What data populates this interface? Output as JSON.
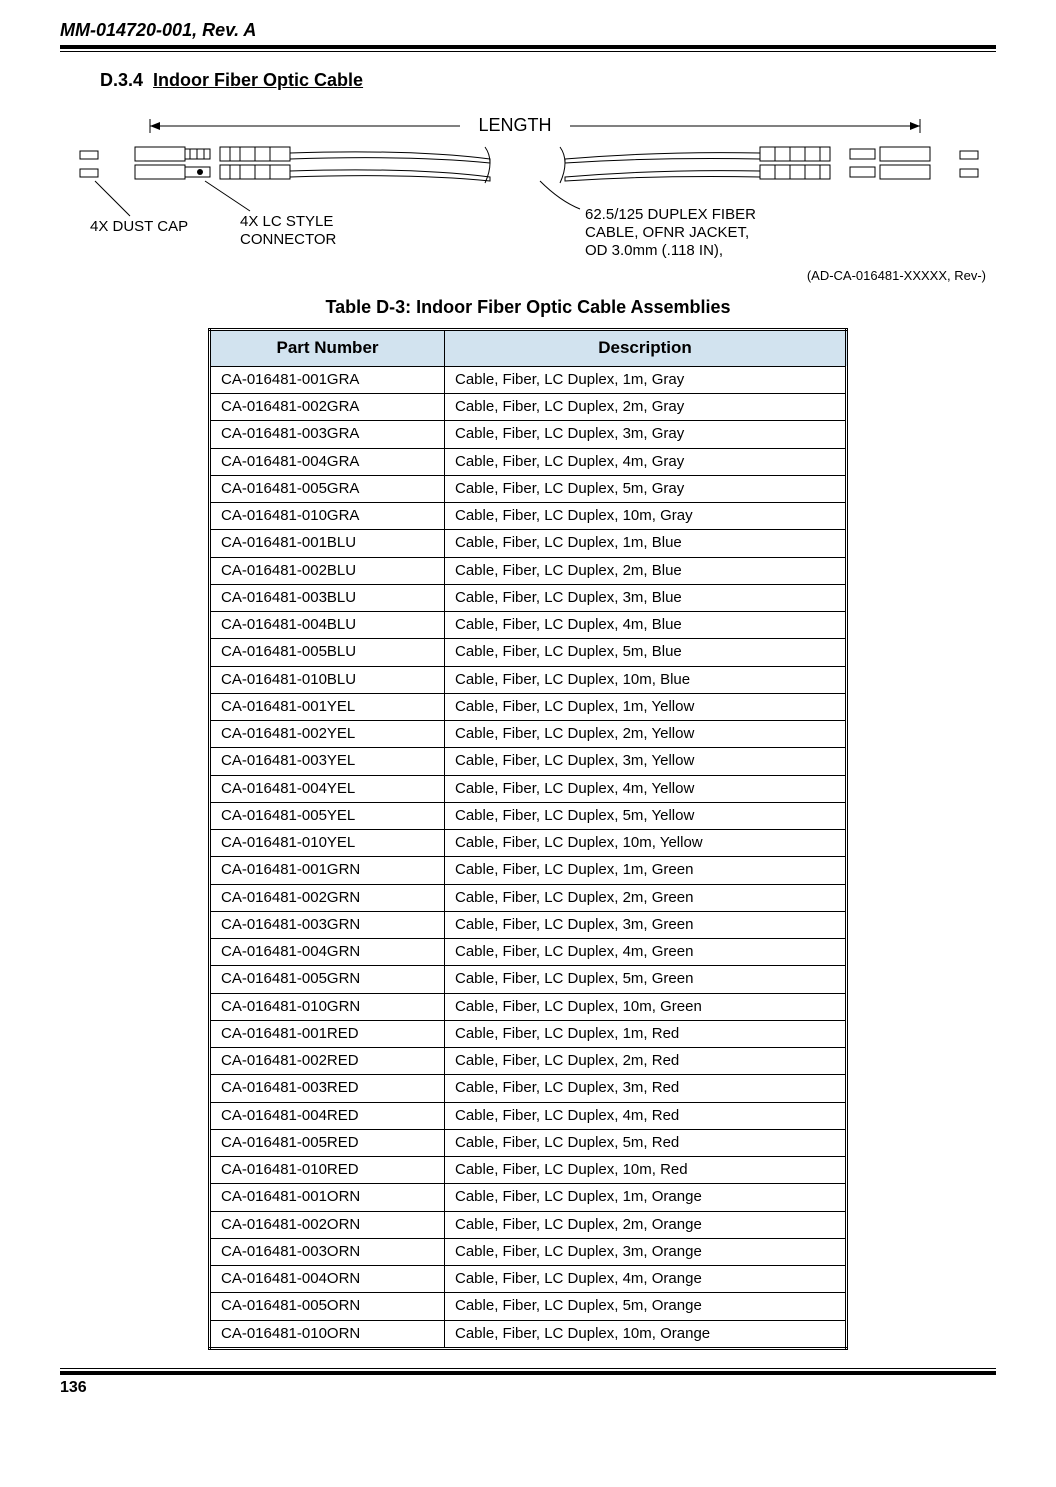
{
  "doc_header": "MM-014720-001, Rev. A",
  "section": {
    "num": "D.3.4",
    "title": "Indoor Fiber Optic Cable"
  },
  "diagram": {
    "length_label": "LENGTH",
    "dustcap_label": "4X DUST CAP",
    "connector_label_l1": "4X LC STYLE",
    "connector_label_l2": "CONNECTOR",
    "cable_label_l1": "62.5/125 DUPLEX FIBER",
    "cable_label_l2": "CABLE, OFNR JACKET,",
    "cable_label_l3": "OD 3.0mm (.118 IN),",
    "rev_note": "(AD-CA-016481-XXXXX, Rev-)"
  },
  "table_title": "Table D-3:  Indoor Fiber Optic Cable Assemblies",
  "columns": [
    "Part Number",
    "Description"
  ],
  "rows": [
    [
      "CA-016481-001GRA",
      "Cable, Fiber, LC Duplex, 1m, Gray"
    ],
    [
      "CA-016481-002GRA",
      "Cable, Fiber, LC Duplex, 2m, Gray"
    ],
    [
      "CA-016481-003GRA",
      "Cable, Fiber, LC Duplex, 3m, Gray"
    ],
    [
      "CA-016481-004GRA",
      "Cable, Fiber, LC Duplex, 4m, Gray"
    ],
    [
      "CA-016481-005GRA",
      "Cable, Fiber, LC Duplex, 5m, Gray"
    ],
    [
      "CA-016481-010GRA",
      "Cable, Fiber, LC Duplex, 10m, Gray"
    ],
    [
      "CA-016481-001BLU",
      "Cable, Fiber, LC Duplex, 1m, Blue"
    ],
    [
      "CA-016481-002BLU",
      "Cable, Fiber, LC Duplex, 2m, Blue"
    ],
    [
      "CA-016481-003BLU",
      "Cable, Fiber, LC Duplex, 3m, Blue"
    ],
    [
      "CA-016481-004BLU",
      "Cable, Fiber, LC Duplex, 4m, Blue"
    ],
    [
      "CA-016481-005BLU",
      "Cable, Fiber, LC Duplex, 5m, Blue"
    ],
    [
      "CA-016481-010BLU",
      "Cable, Fiber, LC Duplex, 10m, Blue"
    ],
    [
      "CA-016481-001YEL",
      "Cable, Fiber, LC Duplex, 1m, Yellow"
    ],
    [
      "CA-016481-002YEL",
      "Cable, Fiber, LC Duplex, 2m, Yellow"
    ],
    [
      "CA-016481-003YEL",
      "Cable, Fiber, LC Duplex, 3m, Yellow"
    ],
    [
      "CA-016481-004YEL",
      "Cable, Fiber, LC Duplex, 4m, Yellow"
    ],
    [
      "CA-016481-005YEL",
      "Cable, Fiber, LC Duplex, 5m, Yellow"
    ],
    [
      "CA-016481-010YEL",
      "Cable, Fiber, LC Duplex, 10m, Yellow"
    ],
    [
      "CA-016481-001GRN",
      "Cable, Fiber, LC Duplex, 1m, Green"
    ],
    [
      "CA-016481-002GRN",
      "Cable, Fiber, LC Duplex, 2m, Green"
    ],
    [
      "CA-016481-003GRN",
      "Cable, Fiber, LC Duplex, 3m, Green"
    ],
    [
      "CA-016481-004GRN",
      "Cable, Fiber, LC Duplex, 4m, Green"
    ],
    [
      "CA-016481-005GRN",
      "Cable, Fiber, LC Duplex, 5m, Green"
    ],
    [
      "CA-016481-010GRN",
      "Cable, Fiber, LC Duplex, 10m, Green"
    ],
    [
      "CA-016481-001RED",
      "Cable, Fiber, LC Duplex, 1m, Red"
    ],
    [
      "CA-016481-002RED",
      "Cable, Fiber, LC Duplex, 2m, Red"
    ],
    [
      "CA-016481-003RED",
      "Cable, Fiber, LC Duplex, 3m, Red"
    ],
    [
      "CA-016481-004RED",
      "Cable, Fiber, LC Duplex, 4m, Red"
    ],
    [
      "CA-016481-005RED",
      "Cable, Fiber, LC Duplex, 5m, Red"
    ],
    [
      "CA-016481-010RED",
      "Cable, Fiber, LC Duplex, 10m, Red"
    ],
    [
      "CA-016481-001ORN",
      "Cable, Fiber, LC Duplex, 1m, Orange"
    ],
    [
      "CA-016481-002ORN",
      "Cable, Fiber, LC Duplex, 2m, Orange"
    ],
    [
      "CA-016481-003ORN",
      "Cable, Fiber, LC Duplex, 3m, Orange"
    ],
    [
      "CA-016481-004ORN",
      "Cable, Fiber, LC Duplex, 4m, Orange"
    ],
    [
      "CA-016481-005ORN",
      "Cable, Fiber, LC Duplex, 5m, Orange"
    ],
    [
      "CA-016481-010ORN",
      "Cable, Fiber, LC Duplex, 10m, Orange"
    ]
  ],
  "page_num": "136",
  "style": {
    "header_bg": "#d2e3ef",
    "border_color": "#000000",
    "text_color": "#000000"
  }
}
